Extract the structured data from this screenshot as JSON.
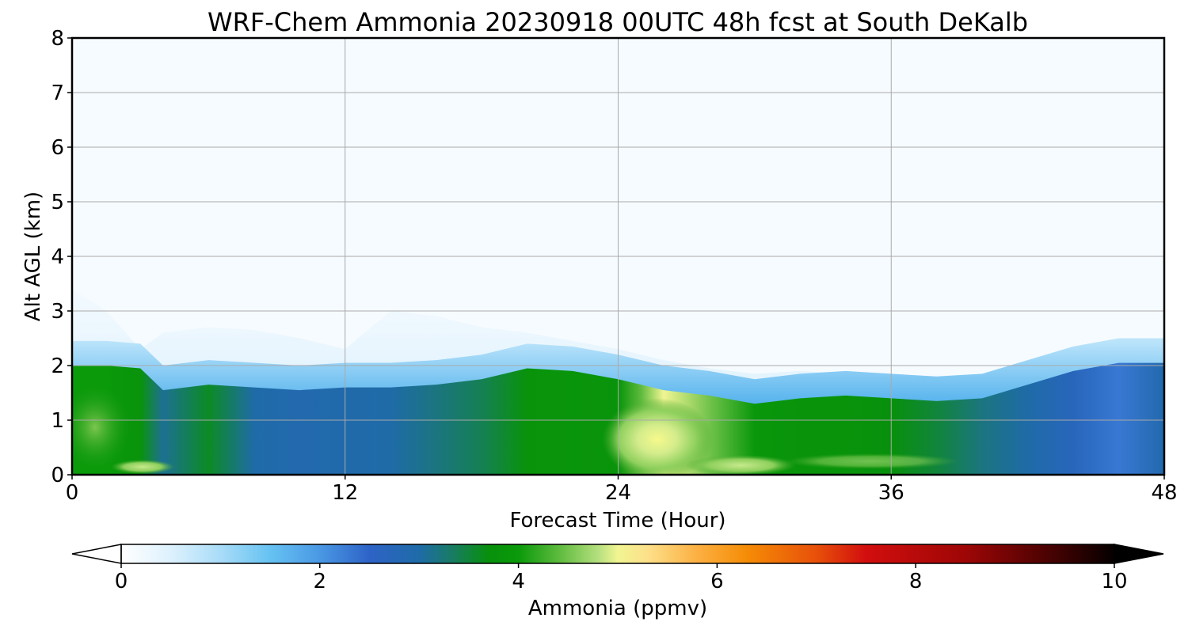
{
  "chart_data": {
    "type": "heatmap",
    "title": "WRF-Chem Ammonia  20230918 00UTC 48h fcst at South DeKalb",
    "xlabel": "Forecast Time (Hour)",
    "ylabel": "Alt AGL (km)",
    "xlim": [
      0,
      48
    ],
    "ylim": [
      0,
      8
    ],
    "x_ticks": [
      0,
      12,
      24,
      36,
      48
    ],
    "y_ticks": [
      0,
      1,
      2,
      3,
      4,
      5,
      6,
      7,
      8
    ],
    "grid": true,
    "x_hours": [
      0,
      1.5,
      3,
      4,
      6,
      8,
      10,
      12,
      14,
      16,
      18,
      20,
      22,
      24,
      25,
      26,
      28,
      30,
      32,
      34,
      36,
      38,
      40,
      42,
      44,
      46,
      48
    ],
    "mixed_layer_top_km": [
      2.0,
      2.0,
      1.95,
      1.55,
      1.65,
      1.6,
      1.55,
      1.6,
      1.6,
      1.65,
      1.75,
      1.95,
      1.9,
      1.75,
      1.65,
      1.55,
      1.45,
      1.3,
      1.4,
      1.45,
      1.4,
      1.35,
      1.4,
      1.65,
      1.9,
      2.05,
      2.05
    ],
    "transition_top_km": [
      3.4,
      3.0,
      2.3,
      2.6,
      2.7,
      2.65,
      2.5,
      2.3,
      3.0,
      2.9,
      2.7,
      2.6,
      2.45,
      2.3,
      2.2,
      2.1,
      1.95,
      1.85,
      1.9,
      1.85,
      1.8,
      1.75,
      1.75,
      1.95,
      2.25,
      2.35,
      2.35
    ],
    "column_ammonia_ppmv": [
      4.0,
      4.0,
      3.8,
      3.1,
      3.6,
      3.0,
      2.9,
      2.95,
      3.0,
      3.2,
      3.4,
      3.8,
      3.85,
      3.8,
      4.4,
      5.0,
      4.5,
      3.9,
      3.8,
      3.8,
      3.7,
      3.5,
      3.2,
      3.0,
      2.7,
      2.3,
      2.9
    ],
    "colorbar": {
      "label": "Ammonia  (ppmv)",
      "range": [
        0,
        10
      ],
      "ticks": [
        0,
        2,
        4,
        6,
        8,
        10
      ],
      "extend": "both",
      "stops": [
        {
          "value": 0,
          "color": "#ffffff"
        },
        {
          "value": 0.5,
          "color": "#ddf1fd"
        },
        {
          "value": 1.0,
          "color": "#a9dcf8"
        },
        {
          "value": 1.5,
          "color": "#66c2f2"
        },
        {
          "value": 2.0,
          "color": "#4a98e4"
        },
        {
          "value": 2.5,
          "color": "#2e63c7"
        },
        {
          "value": 3.0,
          "color": "#1f6ba8"
        },
        {
          "value": 3.3,
          "color": "#197a6a"
        },
        {
          "value": 3.7,
          "color": "#08900c"
        },
        {
          "value": 4.0,
          "color": "#0a9a0a"
        },
        {
          "value": 4.4,
          "color": "#5cba3c"
        },
        {
          "value": 4.8,
          "color": "#b4df7e"
        },
        {
          "value": 5.0,
          "color": "#f1f592"
        },
        {
          "value": 5.3,
          "color": "#fde08a"
        },
        {
          "value": 5.8,
          "color": "#fcb042"
        },
        {
          "value": 6.3,
          "color": "#f58c06"
        },
        {
          "value": 7.0,
          "color": "#e8500a"
        },
        {
          "value": 7.5,
          "color": "#d20e0e"
        },
        {
          "value": 8.5,
          "color": "#9e0606"
        },
        {
          "value": 9.3,
          "color": "#4e0202"
        },
        {
          "value": 10,
          "color": "#050000"
        }
      ]
    }
  }
}
